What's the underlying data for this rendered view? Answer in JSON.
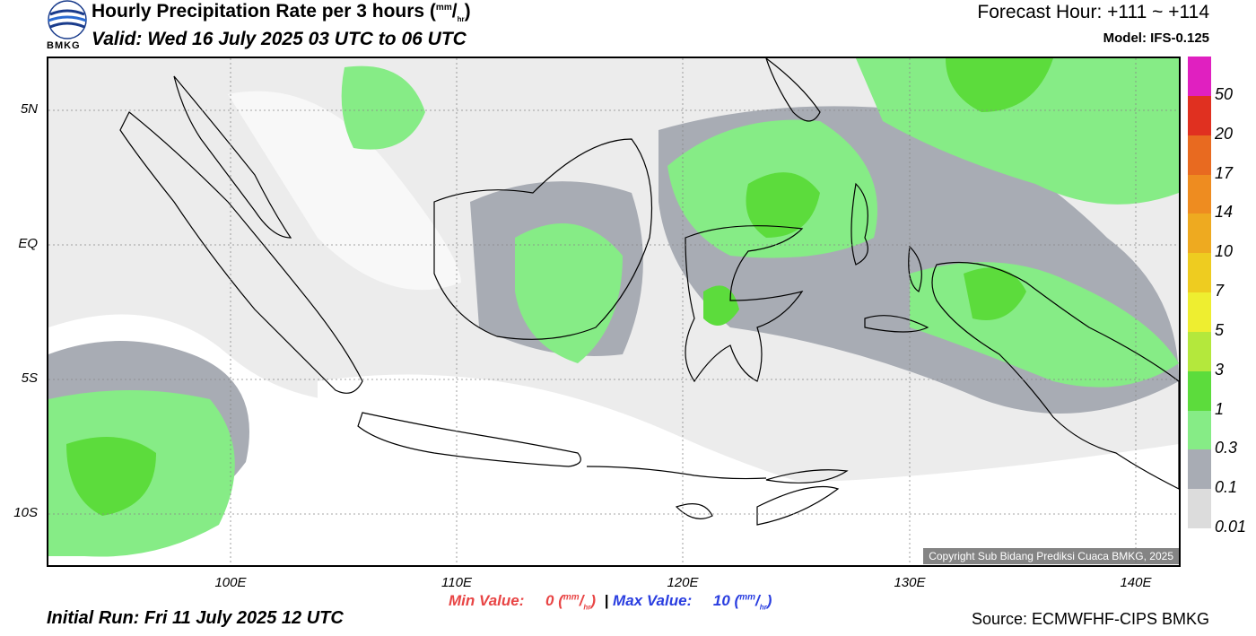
{
  "header": {
    "title": "Hourly Precipitation Rate per 3 hours",
    "title_unit_num": "mm",
    "title_unit_den": "hr",
    "valid": "Valid: Wed 16 July 2025 03 UTC to 06 UTC",
    "forecast_hour": "Forecast Hour: +111 ~ +114",
    "model": "Model: IFS-0.125",
    "logo_text": "BMKG"
  },
  "map": {
    "lat_labels": [
      "5N",
      "EQ",
      "5S",
      "10S"
    ],
    "lon_labels": [
      "100E",
      "110E",
      "120E",
      "130E",
      "140E"
    ],
    "copyright": "Copyright Sub Bidang Prediksi Cuaca BMKG, 2025"
  },
  "colorbar": {
    "labels": [
      "50",
      "20",
      "17",
      "14",
      "10",
      "7",
      "5",
      "3",
      "1",
      "0.3",
      "0.1",
      "0.01"
    ],
    "colors": [
      "#e020c0",
      "#e03020",
      "#e86a20",
      "#ee8c20",
      "#eeaa20",
      "#eecc20",
      "#eeee30",
      "#b4e83c",
      "#5cdc3c",
      "#86ec86",
      "#a8acb4",
      "#dcdcdc"
    ]
  },
  "footer": {
    "min_label": "Min Value:",
    "min_value": "0",
    "max_label": "Max Value:",
    "max_value": "10",
    "unit_num": "mm",
    "unit_den": "hr",
    "separator": "|",
    "initial_run": "Initial Run: Fri 11 July 2025 12 UTC",
    "source": "Source: ECMWFHF-CIPS BMKG"
  }
}
